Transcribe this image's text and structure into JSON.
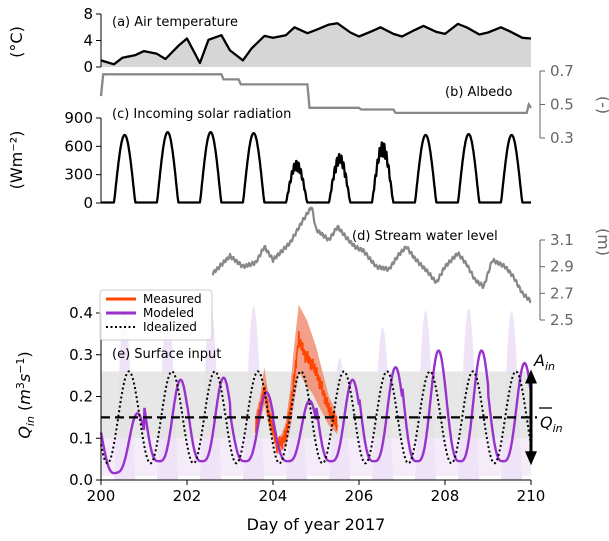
{
  "chart_data": {
    "type": "line",
    "xlabel": "Day of year 2017",
    "x_ticks": [
      200,
      202,
      204,
      206,
      208,
      210
    ],
    "xlim": [
      200,
      210
    ],
    "panels": {
      "air_temperature": {
        "label": "(a) Air temperature",
        "ylabel": "(°C)",
        "yticks": [
          0,
          4,
          8
        ],
        "ylim": [
          0,
          8
        ],
        "fill_color": "#d6d6d6",
        "x": [
          200.0,
          200.3,
          200.5,
          200.8,
          201.0,
          201.3,
          201.5,
          201.8,
          202.0,
          202.3,
          202.5,
          202.8,
          203.0,
          203.3,
          203.5,
          203.8,
          204.0,
          204.3,
          204.5,
          204.8,
          205.0,
          205.3,
          205.5,
          205.8,
          206.0,
          206.3,
          206.5,
          206.8,
          207.0,
          207.3,
          207.5,
          207.8,
          208.0,
          208.3,
          208.5,
          208.8,
          209.0,
          209.3,
          209.5,
          209.8,
          210.0
        ],
        "values": [
          1.0,
          0.4,
          1.4,
          1.8,
          2.4,
          2.0,
          1.2,
          3.2,
          4.3,
          0.6,
          4.1,
          4.8,
          2.5,
          1.0,
          2.8,
          4.7,
          4.4,
          4.8,
          6.0,
          5.1,
          5.6,
          6.4,
          6.6,
          5.2,
          4.6,
          5.4,
          6.0,
          5.0,
          4.6,
          5.6,
          6.2,
          5.3,
          5.0,
          6.5,
          6.0,
          4.9,
          5.2,
          6.0,
          5.4,
          4.4,
          4.3
        ]
      },
      "albedo": {
        "label": "(b) Albedo",
        "ylabel": "(-)",
        "yticks": [
          0.3,
          0.5,
          0.7
        ],
        "ylim": [
          0.3,
          0.7
        ],
        "color": "#888888",
        "x": [
          200.0,
          200.05,
          202.8,
          202.85,
          203.2,
          203.25,
          204.8,
          204.85,
          206.0,
          206.05,
          206.8,
          206.85,
          209.9,
          209.95,
          210.0
        ],
        "values": [
          0.55,
          0.68,
          0.68,
          0.65,
          0.65,
          0.62,
          0.62,
          0.48,
          0.48,
          0.47,
          0.47,
          0.45,
          0.45,
          0.5,
          0.48
        ]
      },
      "solar_radiation": {
        "label": "(c) Incoming solar radiation",
        "ylabel": "(Wm⁻²)",
        "yticks": [
          0,
          300,
          600,
          900
        ],
        "ylim": [
          0,
          900
        ],
        "daily_peaks": [
          720,
          750,
          750,
          740,
          450,
          520,
          650,
          720,
          730,
          720
        ],
        "peak_phase": 0.55
      },
      "stream_water_level": {
        "label": "(d) Stream water level",
        "ylabel": "(m)",
        "yticks": [
          2.5,
          2.7,
          2.9,
          3.1
        ],
        "ylim": [
          2.5,
          3.1
        ],
        "color": "#888888",
        "x": [
          202.6,
          203.0,
          203.3,
          203.6,
          203.8,
          204.0,
          204.4,
          204.7,
          204.9,
          205.0,
          205.3,
          205.5,
          205.7,
          205.9,
          206.1,
          206.4,
          206.7,
          206.9,
          207.1,
          207.3,
          207.6,
          207.8,
          208.0,
          208.3,
          208.5,
          208.7,
          208.9,
          209.1,
          209.4,
          209.6,
          209.8,
          210.0
        ],
        "values": [
          2.85,
          2.98,
          2.9,
          2.93,
          3.05,
          2.95,
          3.08,
          3.25,
          3.35,
          3.18,
          3.1,
          3.2,
          3.12,
          3.05,
          3.02,
          2.9,
          2.88,
          2.98,
          3.05,
          2.96,
          2.86,
          2.78,
          2.9,
          3.0,
          2.92,
          2.8,
          2.75,
          2.95,
          2.9,
          2.82,
          2.7,
          2.64
        ]
      },
      "surface_input": {
        "label": "(e) Surface input",
        "ylabel": "Qin (m³s⁻¹)",
        "yticks": [
          0.0,
          0.1,
          0.2,
          0.3,
          0.4
        ],
        "ylim": [
          0,
          0.4
        ],
        "mean_line": 0.15,
        "band": [
          0.1,
          0.26
        ],
        "annotation_amplitude": "Ain",
        "annotation_mean": "Qin (mean)",
        "legend": [
          "Measured",
          "Modeled",
          "Idealized"
        ],
        "legend_colors": [
          "#ff4500",
          "#9932cc",
          "#000000"
        ],
        "idealized": {
          "mean": 0.15,
          "amplitude": 0.11,
          "peak_phase": 0.65
        },
        "modeled_daily_peaks": [
          0.16,
          0.24,
          0.245,
          0.21,
          0.19,
          0.24,
          0.27,
          0.31,
          0.31,
          0.28
        ],
        "modeled_peak_phase": 0.85,
        "measured": {
          "x": [
            203.6,
            203.7,
            203.8,
            203.9,
            204.0,
            204.1,
            204.2,
            204.3,
            204.4,
            204.5,
            204.6,
            204.7,
            204.8,
            204.9,
            205.0,
            205.1,
            205.2,
            205.3,
            205.4,
            205.5
          ],
          "values": [
            0.13,
            0.17,
            0.22,
            0.16,
            0.12,
            0.08,
            0.09,
            0.11,
            0.17,
            0.25,
            0.34,
            0.31,
            0.29,
            0.28,
            0.26,
            0.23,
            0.2,
            0.17,
            0.15,
            0.13
          ],
          "upper": [
            0.16,
            0.2,
            0.27,
            0.2,
            0.15,
            0.1,
            0.11,
            0.14,
            0.22,
            0.33,
            0.42,
            0.4,
            0.38,
            0.35,
            0.32,
            0.28,
            0.24,
            0.2,
            0.18,
            0.15
          ],
          "lower": [
            0.1,
            0.14,
            0.18,
            0.13,
            0.1,
            0.06,
            0.07,
            0.08,
            0.12,
            0.19,
            0.26,
            0.24,
            0.22,
            0.21,
            0.19,
            0.17,
            0.15,
            0.13,
            0.12,
            0.11
          ]
        }
      }
    }
  }
}
